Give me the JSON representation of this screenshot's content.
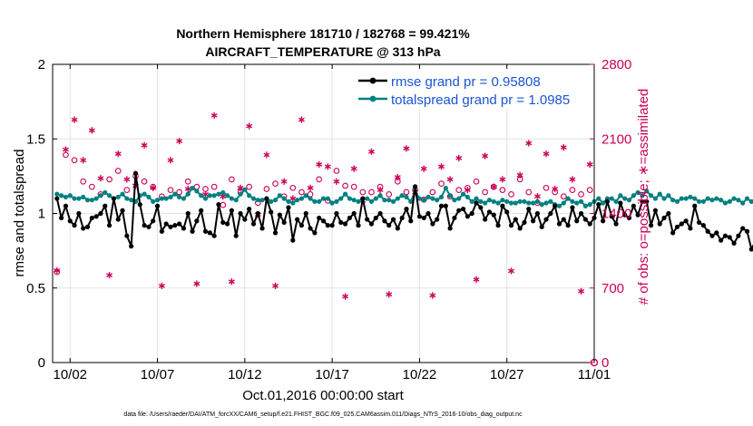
{
  "chart_data": {
    "type": "line",
    "title": "Northern Hemisphere 181710 / 182768 = 99.421%",
    "subtitle": "AIRCRAFT_TEMPERATURE @ 313 hPa",
    "xlabel": "Oct.01,2016 00:00:00 start",
    "ylabel": "rmse and totalspread",
    "ylabel_right": "# of obs: o=possible; ∗=assimilated",
    "footnote": "data file: /Users/raeder/DAI/ATM_forcXX/CAM6_setup/f.e21.FHIST_BGC.f09_025.CAM6assim.011/Diags_NTrS_2016-10/obs_diag_output.nc",
    "xlim": [
      0,
      31
    ],
    "ylim": [
      0,
      2
    ],
    "ylim_right": [
      0,
      2800
    ],
    "x_ticks": [
      1,
      6,
      11,
      16,
      21,
      26,
      31
    ],
    "x_tick_labels": [
      "10/02",
      "10/07",
      "10/12",
      "10/17",
      "10/22",
      "10/27",
      "11/01"
    ],
    "y_ticks": [
      0,
      0.5,
      1,
      1.5,
      2
    ],
    "y_tick_labels": [
      "0",
      "0.5",
      "1",
      "1.5",
      "2"
    ],
    "y_ticks_right": [
      0,
      700,
      1400,
      2100,
      2800
    ],
    "y_tick_labels_right": [
      "0",
      "700",
      "1400",
      "2100",
      "2800"
    ],
    "grid": true,
    "legend_position": "top-right",
    "colors": {
      "rmse": "#000000",
      "spread": "#008080",
      "obs": "#cc0055",
      "legend_text": "#1a55d6"
    },
    "series": [
      {
        "name": "rmse",
        "legend": "rmse grand pr = 0.95808",
        "axis": "left",
        "start": 0.25,
        "step": 0.25,
        "values": [
          1.1,
          0.97,
          1.05,
          0.95,
          0.92,
          1.0,
          0.9,
          0.91,
          0.97,
          0.98,
          1.0,
          1.05,
          0.92,
          1.1,
          0.96,
          1.02,
          0.85,
          0.78,
          1.27,
          1.06,
          0.92,
          0.91,
          0.95,
          1.05,
          0.88,
          0.93,
          0.91,
          0.92,
          0.93,
          0.9,
          1.0,
          0.88,
          0.95,
          1.02,
          0.88,
          0.87,
          0.85,
          1.06,
          0.94,
          0.93,
          1.02,
          0.85,
          1.0,
          0.96,
          1.03,
          0.93,
          1.0,
          0.9,
          1.1,
          1.01,
          0.87,
          0.99,
          0.94,
          1.04,
          0.82,
          0.96,
          0.92,
          1.0,
          0.9,
          0.87,
          0.97,
          0.95,
          0.92,
          0.92,
          1.0,
          0.94,
          0.93,
          0.97,
          1.0,
          0.92,
          1.1,
          0.96,
          0.93,
          0.97,
          1.0,
          0.95,
          0.92,
          0.96,
          0.9,
          0.97,
          1.03,
          0.95,
          1.18,
          0.98,
          0.97,
          1.0,
          0.93,
          0.96,
          1.05,
          1.05,
          0.9,
          0.97,
          1.02,
          1.03,
          0.98,
          1.0,
          1.07,
          1.04,
          0.96,
          1.01,
          0.99,
          0.92,
          1.05,
          1.01,
          0.92,
          0.96,
          0.9,
          0.94,
          1.03,
          0.95,
          1.0,
          0.91,
          0.96,
          1.0,
          1.05,
          0.93,
          0.96,
          0.92,
          1.04,
          0.95,
          1.0,
          0.96,
          0.93,
          0.97,
          1.06,
          0.95,
          1.08,
          0.98,
          0.93,
          1.07,
          0.99,
          0.97,
          1.05,
          0.99,
          1.08,
          1.08,
          0.92,
          1.02,
          0.93,
          0.97,
          1.0,
          0.87,
          0.91,
          0.93,
          0.95,
          0.9,
          1.05,
          0.94,
          0.92,
          0.88,
          0.85,
          0.87,
          0.82,
          0.85,
          0.84,
          0.8,
          0.85,
          0.9,
          0.88,
          0.76,
          0.82,
          0.8,
          1.04,
          0.85,
          0.9,
          0.83,
          0.8,
          0.75
        ]
      },
      {
        "name": "totalspread",
        "legend": "totalspread grand pr = 1.0985",
        "axis": "left",
        "start": 0.25,
        "step": 0.25,
        "values": [
          1.13,
          1.12,
          1.11,
          1.12,
          1.1,
          1.1,
          1.11,
          1.09,
          1.09,
          1.1,
          1.12,
          1.14,
          1.12,
          1.1,
          1.11,
          1.13,
          1.1,
          1.09,
          1.08,
          1.12,
          1.13,
          1.11,
          1.08,
          1.09,
          1.1,
          1.1,
          1.11,
          1.13,
          1.11,
          1.1,
          1.13,
          1.17,
          1.15,
          1.12,
          1.1,
          1.12,
          1.12,
          1.13,
          1.14,
          1.12,
          1.1,
          1.09,
          1.13,
          1.16,
          1.12,
          1.1,
          1.09,
          1.09,
          1.1,
          1.08,
          1.09,
          1.12,
          1.1,
          1.08,
          1.07,
          1.09,
          1.1,
          1.12,
          1.1,
          1.08,
          1.08,
          1.1,
          1.1,
          1.07,
          1.08,
          1.1,
          1.13,
          1.1,
          1.09,
          1.08,
          1.1,
          1.1,
          1.08,
          1.1,
          1.12,
          1.09,
          1.09,
          1.08,
          1.1,
          1.12,
          1.11,
          1.08,
          1.15,
          1.1,
          1.09,
          1.11,
          1.1,
          1.09,
          1.11,
          1.17,
          1.12,
          1.09,
          1.1,
          1.13,
          1.11,
          1.08,
          1.1,
          1.08,
          1.07,
          1.09,
          1.08,
          1.07,
          1.09,
          1.08,
          1.07,
          1.07,
          1.08,
          1.08,
          1.07,
          1.07,
          1.08,
          1.06,
          1.07,
          1.08,
          1.06,
          1.05,
          1.07,
          1.1,
          1.08,
          1.07,
          1.08,
          1.05,
          1.06,
          1.08,
          1.1,
          1.07,
          1.1,
          1.1,
          1.08,
          1.12,
          1.1,
          1.09,
          1.12,
          1.14,
          1.12,
          1.15,
          1.12,
          1.1,
          1.13,
          1.1,
          1.12,
          1.09,
          1.08,
          1.1,
          1.1,
          1.11,
          1.1,
          1.08,
          1.08,
          1.1,
          1.09,
          1.1,
          1.09,
          1.07,
          1.08,
          1.1,
          1.09,
          1.07,
          1.1,
          1.08,
          1.09,
          1.1,
          1.08,
          1.07,
          1.08,
          1.05,
          1.06,
          1.04,
          1.04,
          1.03
        ]
      },
      {
        "name": "obs_possible",
        "axis": "right",
        "marker": "o",
        "start": 0.25,
        "step": 0.5,
        "values": [
          850,
          1950,
          1900,
          1700,
          1650,
          1580,
          1720,
          1800,
          1620,
          1750,
          1700,
          1650,
          1560,
          1620,
          1600,
          1700,
          1650,
          1630,
          1650,
          1480,
          1720,
          1600,
          1650,
          1500,
          1630,
          1680,
          1560,
          1640,
          1600,
          1580,
          1720,
          1520,
          1800,
          1660,
          1650,
          1600,
          1600,
          1650,
          1580,
          1700,
          1600,
          1620,
          1530,
          1600,
          1680,
          1560,
          1620,
          1640,
          1700,
          1600,
          1650,
          1620,
          1580,
          1720,
          1600,
          1500,
          1640,
          1600,
          1560,
          1620,
          1580,
          1620
        ]
      },
      {
        "name": "obs_assimilated",
        "axis": "right",
        "marker": "*",
        "start": 0.25,
        "step": 0.5,
        "values": [
          865,
          2000,
          2280,
          1900,
          2180,
          1730,
          820,
          1960,
          1720,
          1660,
          2040,
          1640,
          720,
          1900,
          2080,
          1630,
          740,
          1580,
          2320,
          1560,
          760,
          1640,
          2220,
          1390,
          1950,
          720,
          1700,
          1540,
          2280,
          1640,
          1860,
          1840,
          1700,
          620,
          1820,
          1520,
          1980,
          1620,
          640,
          1740,
          2010,
          1600,
          1820,
          630,
          1840,
          1720,
          1920,
          1620,
          780,
          1940,
          1650,
          1720,
          860,
          1760,
          2060,
          1560,
          1960,
          1630,
          2020,
          1720,
          670,
          1860
        ]
      }
    ]
  }
}
